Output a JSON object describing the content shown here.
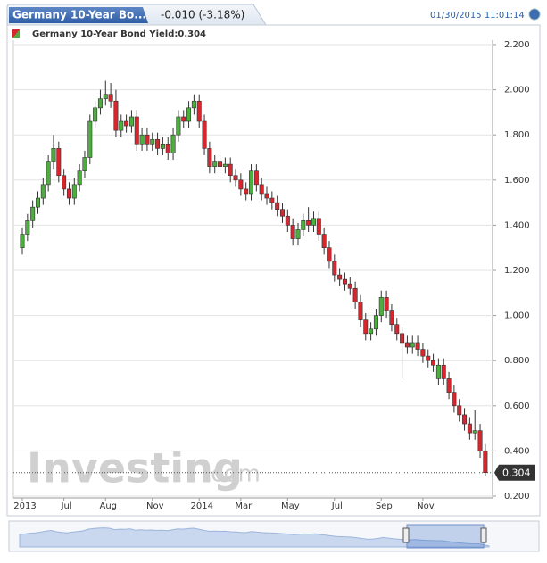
{
  "header": {
    "title": "Germany 10-Year Bo...",
    "change": "-0.010 (-3.18%)",
    "timestamp": "01/30/2015 11:01:14"
  },
  "chart_data": {
    "type": "candlestick",
    "legend": "Germany 10-Year Bond Yield:0.304",
    "last_label": "0.304",
    "last_value": 0.304,
    "watermark": [
      "Investing",
      ".com"
    ],
    "up_color": "#4cae3c",
    "down_color": "#d7262e",
    "categories": [
      "2013",
      null,
      null,
      null,
      null,
      null,
      null,
      null,
      "Jul",
      null,
      null,
      null,
      null,
      null,
      null,
      null,
      "Aug",
      null,
      null,
      null,
      null,
      null,
      null,
      null,
      null,
      "Nov",
      null,
      null,
      null,
      null,
      null,
      null,
      null,
      null,
      "2014",
      null,
      null,
      null,
      null,
      null,
      null,
      null,
      "Mar",
      null,
      null,
      null,
      null,
      null,
      null,
      null,
      null,
      "May",
      null,
      null,
      null,
      null,
      null,
      null,
      null,
      null,
      "Jul",
      null,
      null,
      null,
      null,
      null,
      null,
      null,
      null,
      "Sep",
      null,
      null,
      null,
      null,
      null,
      null,
      null,
      "Nov",
      null,
      null,
      null,
      null,
      null,
      null,
      null,
      null,
      null,
      null,
      null,
      null
    ],
    "open": [
      1.3,
      1.36,
      1.42,
      1.48,
      1.52,
      1.58,
      1.68,
      1.74,
      1.62,
      1.56,
      1.52,
      1.58,
      1.64,
      1.7,
      1.86,
      1.92,
      1.96,
      1.98,
      1.95,
      1.82,
      1.86,
      1.84,
      1.88,
      1.76,
      1.8,
      1.76,
      1.78,
      1.74,
      1.76,
      1.72,
      1.8,
      1.88,
      1.86,
      1.92,
      1.95,
      1.86,
      1.74,
      1.66,
      1.68,
      1.66,
      1.67,
      1.62,
      1.6,
      1.56,
      1.54,
      1.64,
      1.58,
      1.54,
      1.52,
      1.5,
      1.47,
      1.44,
      1.4,
      1.34,
      1.38,
      1.42,
      1.4,
      1.43,
      1.36,
      1.3,
      1.24,
      1.18,
      1.16,
      1.14,
      1.12,
      1.06,
      0.98,
      0.92,
      0.94,
      1.0,
      1.08,
      1.02,
      0.96,
      0.92,
      0.88,
      0.86,
      0.88,
      0.85,
      0.82,
      0.8,
      0.72,
      0.78,
      0.72,
      0.66,
      0.6,
      0.56,
      0.52,
      0.48,
      0.49,
      0.4
    ],
    "high": [
      1.39,
      1.45,
      1.51,
      1.55,
      1.61,
      1.71,
      1.8,
      1.77,
      1.65,
      1.59,
      1.61,
      1.67,
      1.73,
      1.89,
      1.95,
      2.0,
      2.04,
      2.03,
      2.0,
      1.89,
      1.89,
      1.91,
      1.91,
      1.83,
      1.83,
      1.81,
      1.81,
      1.79,
      1.79,
      1.83,
      1.91,
      1.91,
      1.95,
      1.98,
      1.98,
      1.89,
      1.77,
      1.71,
      1.71,
      1.7,
      1.7,
      1.65,
      1.63,
      1.59,
      1.67,
      1.67,
      1.61,
      1.57,
      1.55,
      1.53,
      1.5,
      1.47,
      1.43,
      1.41,
      1.45,
      1.48,
      1.46,
      1.46,
      1.39,
      1.33,
      1.27,
      1.21,
      1.19,
      1.17,
      1.15,
      1.09,
      1.01,
      0.97,
      1.03,
      1.11,
      1.11,
      1.05,
      0.99,
      0.95,
      0.91,
      0.91,
      0.91,
      0.88,
      0.85,
      0.83,
      0.81,
      0.81,
      0.75,
      0.69,
      0.63,
      0.59,
      0.55,
      0.58,
      0.52,
      0.43
    ],
    "low": [
      1.27,
      1.33,
      1.39,
      1.45,
      1.49,
      1.55,
      1.65,
      1.59,
      1.53,
      1.49,
      1.49,
      1.55,
      1.61,
      1.67,
      1.83,
      1.89,
      1.93,
      1.92,
      1.79,
      1.79,
      1.81,
      1.81,
      1.73,
      1.73,
      1.73,
      1.73,
      1.71,
      1.71,
      1.69,
      1.69,
      1.77,
      1.83,
      1.83,
      1.89,
      1.83,
      1.71,
      1.63,
      1.63,
      1.63,
      1.63,
      1.59,
      1.57,
      1.53,
      1.51,
      1.51,
      1.55,
      1.51,
      1.49,
      1.47,
      1.44,
      1.41,
      1.37,
      1.31,
      1.31,
      1.35,
      1.37,
      1.37,
      1.33,
      1.27,
      1.21,
      1.15,
      1.13,
      1.11,
      1.09,
      1.03,
      0.95,
      0.89,
      0.89,
      0.91,
      0.97,
      0.99,
      0.93,
      0.89,
      0.72,
      0.83,
      0.83,
      0.82,
      0.79,
      0.77,
      0.75,
      0.69,
      0.69,
      0.63,
      0.57,
      0.53,
      0.49,
      0.45,
      0.45,
      0.37,
      0.29
    ],
    "close": [
      1.36,
      1.42,
      1.48,
      1.52,
      1.58,
      1.68,
      1.74,
      1.62,
      1.56,
      1.52,
      1.58,
      1.64,
      1.7,
      1.86,
      1.92,
      1.96,
      1.98,
      1.95,
      1.82,
      1.86,
      1.84,
      1.88,
      1.76,
      1.8,
      1.76,
      1.78,
      1.74,
      1.76,
      1.72,
      1.8,
      1.88,
      1.86,
      1.92,
      1.95,
      1.86,
      1.74,
      1.66,
      1.68,
      1.66,
      1.67,
      1.62,
      1.6,
      1.56,
      1.54,
      1.64,
      1.58,
      1.54,
      1.52,
      1.5,
      1.47,
      1.44,
      1.4,
      1.34,
      1.38,
      1.42,
      1.4,
      1.43,
      1.36,
      1.3,
      1.24,
      1.18,
      1.16,
      1.14,
      1.12,
      1.06,
      0.98,
      0.92,
      0.94,
      1.0,
      1.08,
      1.02,
      0.96,
      0.92,
      0.88,
      0.86,
      0.88,
      0.85,
      0.82,
      0.8,
      0.78,
      0.78,
      0.72,
      0.66,
      0.6,
      0.56,
      0.52,
      0.48,
      0.49,
      0.4,
      0.304
    ],
    "ylim": [
      0.2,
      2.2
    ],
    "yticks": [
      {
        "value": 0.2,
        "label": "0.200"
      },
      {
        "value": 0.4,
        "label": "0.400"
      },
      {
        "value": 0.6,
        "label": "0.600"
      },
      {
        "value": 0.8,
        "label": "0.800"
      },
      {
        "value": 1.0,
        "label": "1.000"
      },
      {
        "value": 1.2,
        "label": "1.200"
      },
      {
        "value": 1.4,
        "label": "1.400"
      },
      {
        "value": 1.6,
        "label": "1.600"
      },
      {
        "value": 1.8,
        "label": "1.800"
      },
      {
        "value": 2.0,
        "label": "2.000"
      },
      {
        "value": 2.2,
        "label": "2.200"
      }
    ],
    "grid": true
  }
}
